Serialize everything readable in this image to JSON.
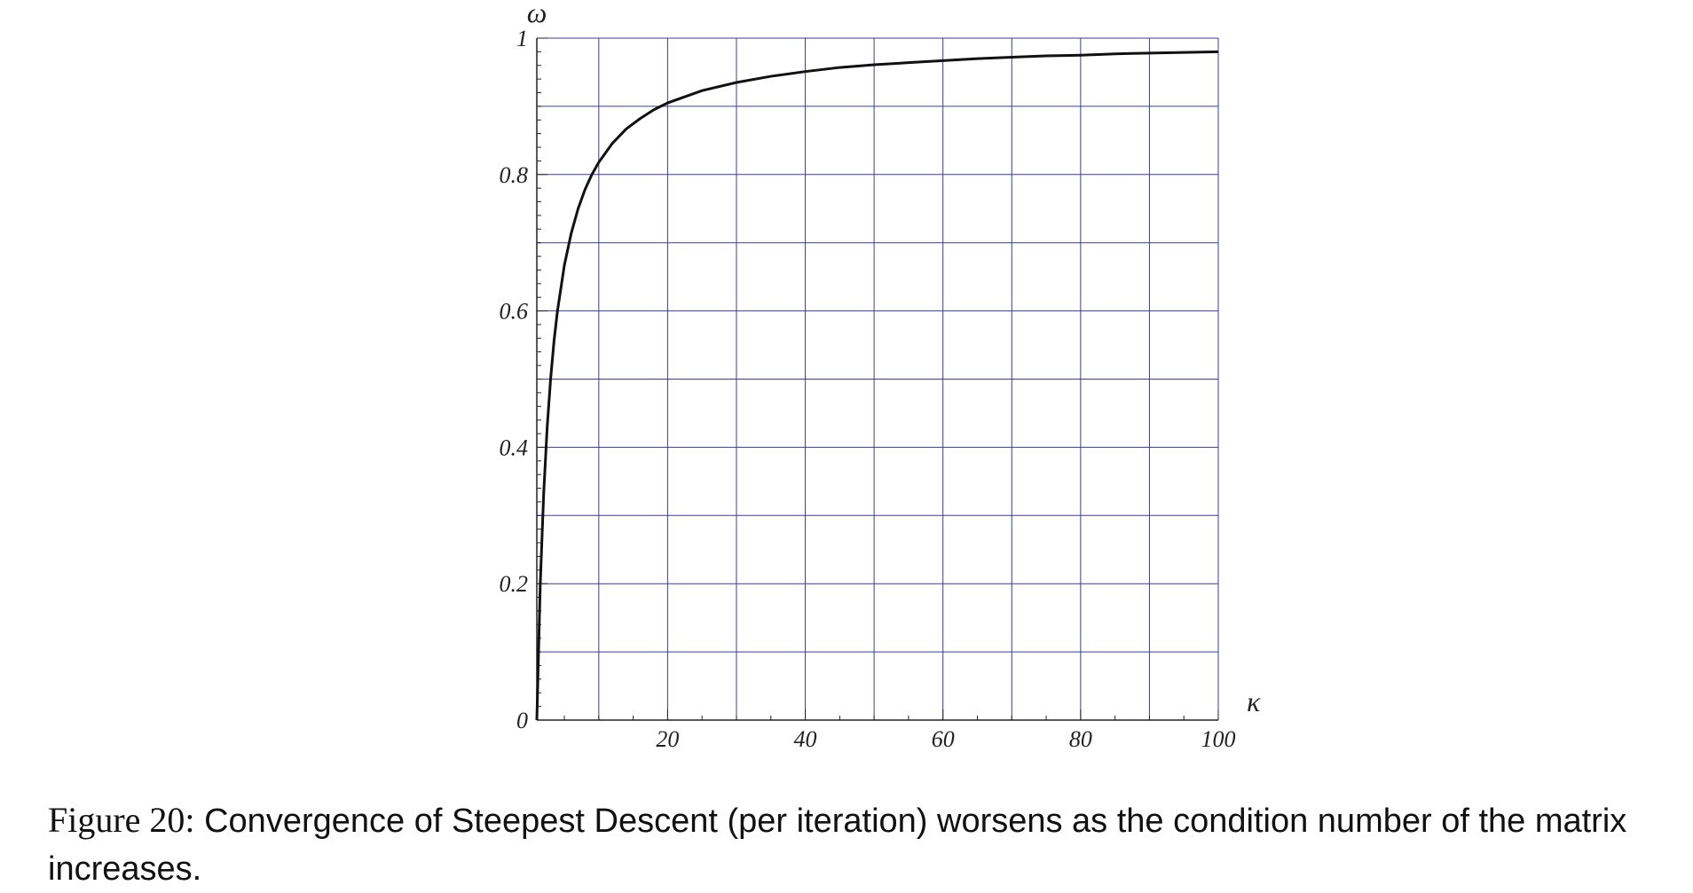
{
  "chart_data": {
    "type": "line",
    "title": "",
    "xlabel": "κ",
    "ylabel": "ω",
    "xlim": [
      1,
      100
    ],
    "ylim": [
      0,
      1
    ],
    "grid": true,
    "x_ticks": [
      20,
      40,
      60,
      80,
      100
    ],
    "x_tick_labels": [
      "20",
      "40",
      "60",
      "80",
      "100"
    ],
    "y_ticks": [
      0,
      0.2,
      0.4,
      0.6,
      0.8,
      1
    ],
    "y_tick_labels": [
      "0",
      "0.2",
      "0.4",
      "0.6",
      "0.8",
      "1"
    ],
    "series": [
      {
        "x": [
          1,
          1.5,
          2,
          2.5,
          3,
          3.5,
          4,
          5,
          6,
          7,
          8,
          9,
          10,
          12,
          14,
          16,
          18,
          20,
          25,
          30,
          35,
          40,
          45,
          50,
          55,
          60,
          65,
          70,
          75,
          80,
          85,
          90,
          95,
          100
        ],
        "y": [
          0.0,
          0.2,
          0.333,
          0.429,
          0.5,
          0.556,
          0.6,
          0.667,
          0.714,
          0.75,
          0.778,
          0.8,
          0.818,
          0.846,
          0.867,
          0.882,
          0.895,
          0.905,
          0.923,
          0.935,
          0.944,
          0.951,
          0.957,
          0.961,
          0.964,
          0.967,
          0.97,
          0.972,
          0.974,
          0.975,
          0.977,
          0.978,
          0.979,
          0.98
        ]
      }
    ],
    "colors": {
      "curve": "#111111",
      "grid": "#3c3c96",
      "axis": "#222222"
    }
  },
  "caption": {
    "label": "Figure 20:",
    "text": "Convergence of Steepest Descent (per iteration) worsens as the condition number of the matrix increases."
  }
}
